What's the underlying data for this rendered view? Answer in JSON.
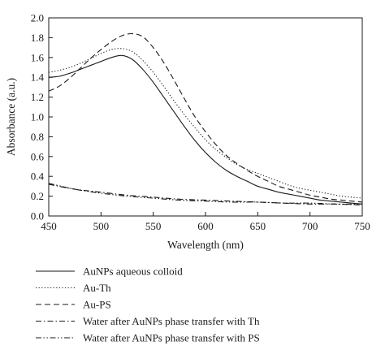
{
  "chart_data": {
    "type": "line",
    "title": "",
    "xlabel": "Wavelength (nm)",
    "ylabel": "Absorbance (a.u.)",
    "xlim": [
      450,
      750
    ],
    "ylim": [
      0,
      2.0
    ],
    "xticks": [
      450,
      500,
      550,
      600,
      650,
      700,
      750
    ],
    "yticks": [
      0.0,
      0.2,
      0.4,
      0.6,
      0.8,
      1.0,
      1.2,
      1.4,
      1.6,
      1.8,
      2.0
    ],
    "xtick_labels": [
      "450",
      "500",
      "550",
      "600",
      "650",
      "700",
      "750"
    ],
    "ytick_labels": [
      "0.0",
      "0.2",
      "0.4",
      "0.6",
      "0.8",
      "1.0",
      "1.2",
      "1.4",
      "1.6",
      "1.8",
      "2.0"
    ],
    "grid": false,
    "legend_position": "below",
    "series": [
      {
        "name": "AuNPs aqueous colloid",
        "style": "solid",
        "color": "#1a1a1a",
        "x": [
          450,
          460,
          470,
          480,
          490,
          500,
          510,
          520,
          530,
          540,
          550,
          560,
          570,
          580,
          590,
          600,
          610,
          620,
          630,
          640,
          650,
          660,
          670,
          680,
          690,
          700,
          710,
          720,
          730,
          740,
          750
        ],
        "y": [
          1.4,
          1.41,
          1.44,
          1.48,
          1.52,
          1.56,
          1.6,
          1.62,
          1.58,
          1.48,
          1.35,
          1.2,
          1.05,
          0.9,
          0.76,
          0.64,
          0.54,
          0.46,
          0.4,
          0.35,
          0.3,
          0.27,
          0.24,
          0.22,
          0.2,
          0.18,
          0.16,
          0.15,
          0.14,
          0.13,
          0.12
        ]
      },
      {
        "name": "Au-Th",
        "style": "dotted",
        "color": "#1a1a1a",
        "x": [
          450,
          460,
          470,
          480,
          490,
          500,
          510,
          520,
          530,
          540,
          550,
          560,
          570,
          580,
          590,
          600,
          610,
          620,
          630,
          640,
          650,
          660,
          670,
          680,
          690,
          700,
          710,
          720,
          730,
          740,
          750
        ],
        "y": [
          1.45,
          1.47,
          1.5,
          1.54,
          1.59,
          1.64,
          1.68,
          1.69,
          1.66,
          1.57,
          1.45,
          1.31,
          1.16,
          1.02,
          0.89,
          0.77,
          0.67,
          0.59,
          0.52,
          0.47,
          0.43,
          0.39,
          0.35,
          0.31,
          0.28,
          0.26,
          0.24,
          0.22,
          0.2,
          0.19,
          0.18
        ]
      },
      {
        "name": "Au-PS",
        "style": "dashed",
        "color": "#1a1a1a",
        "x": [
          450,
          460,
          470,
          480,
          490,
          500,
          510,
          520,
          530,
          540,
          550,
          560,
          570,
          580,
          590,
          600,
          610,
          620,
          630,
          640,
          650,
          660,
          670,
          680,
          690,
          700,
          710,
          720,
          730,
          740,
          750
        ],
        "y": [
          1.26,
          1.31,
          1.39,
          1.49,
          1.59,
          1.68,
          1.76,
          1.82,
          1.84,
          1.81,
          1.7,
          1.55,
          1.37,
          1.18,
          1.0,
          0.85,
          0.72,
          0.61,
          0.53,
          0.46,
          0.4,
          0.35,
          0.3,
          0.27,
          0.24,
          0.21,
          0.19,
          0.17,
          0.16,
          0.15,
          0.14
        ]
      },
      {
        "name": "Water after AuNPs phase transfer with Th",
        "style": "dashdot",
        "color": "#1a1a1a",
        "x": [
          450,
          475,
          500,
          525,
          550,
          575,
          600,
          625,
          650,
          675,
          700,
          725,
          750
        ],
        "y": [
          0.32,
          0.27,
          0.24,
          0.21,
          0.19,
          0.17,
          0.16,
          0.15,
          0.14,
          0.13,
          0.12,
          0.12,
          0.11
        ]
      },
      {
        "name": "Water after AuNPs phase transfer with PS",
        "style": "dashdotdot",
        "color": "#1a1a1a",
        "x": [
          450,
          475,
          500,
          525,
          550,
          575,
          600,
          625,
          650,
          675,
          700,
          725,
          750
        ],
        "y": [
          0.33,
          0.27,
          0.23,
          0.2,
          0.18,
          0.16,
          0.15,
          0.14,
          0.14,
          0.13,
          0.13,
          0.12,
          0.12
        ]
      }
    ]
  }
}
